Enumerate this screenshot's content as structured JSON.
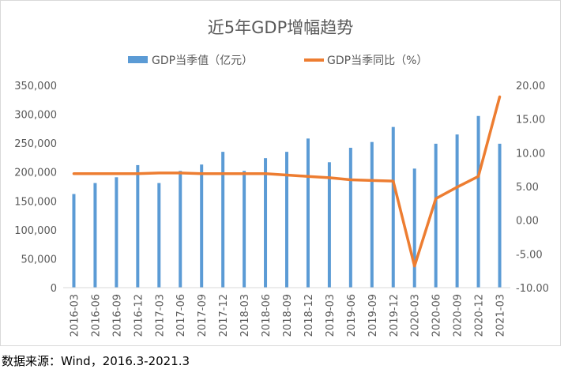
{
  "chart_data": {
    "type": "bar+line",
    "title": "近5年GDP增幅趋势",
    "categories": [
      "2016-03",
      "2016-06",
      "2016-09",
      "2016-12",
      "2017-03",
      "2017-06",
      "2017-09",
      "2017-12",
      "2018-03",
      "2018-06",
      "2018-09",
      "2018-12",
      "2019-03",
      "2019-06",
      "2019-09",
      "2019-12",
      "2020-03",
      "2020-06",
      "2020-09",
      "2020-12",
      "2021-03"
    ],
    "series": [
      {
        "name": "GDP当季值（亿元）",
        "type": "bar",
        "axis": "left",
        "color": "#5b9bd5",
        "values": [
          162000,
          181000,
          191000,
          212000,
          181000,
          202000,
          213000,
          235000,
          202000,
          224000,
          235000,
          258000,
          217000,
          242000,
          252000,
          278000,
          206000,
          249000,
          265000,
          297000,
          249000
        ]
      },
      {
        "name": "GDP当季同比（%）",
        "type": "line",
        "axis": "right",
        "color": "#ed7d31",
        "values": [
          6.9,
          6.9,
          6.9,
          6.9,
          7.0,
          7.0,
          6.9,
          6.9,
          6.9,
          6.9,
          6.7,
          6.5,
          6.3,
          6.0,
          5.9,
          5.8,
          -6.8,
          3.2,
          4.9,
          6.5,
          18.3
        ]
      }
    ],
    "y_left": {
      "min": 0,
      "max": 350000,
      "step": 50000,
      "ticks": [
        "0",
        "50,000",
        "100,000",
        "150,000",
        "200,000",
        "250,000",
        "300,000",
        "350,000"
      ]
    },
    "y_right": {
      "min": -10,
      "max": 20,
      "step": 5,
      "ticks": [
        "-10.00",
        "-5.00",
        "0.00",
        "5.00",
        "10.00",
        "15.00",
        "20.00"
      ]
    },
    "legend_position": "top",
    "grid": false
  },
  "source_note": "数据来源：Wind，2016.3-2021.3"
}
